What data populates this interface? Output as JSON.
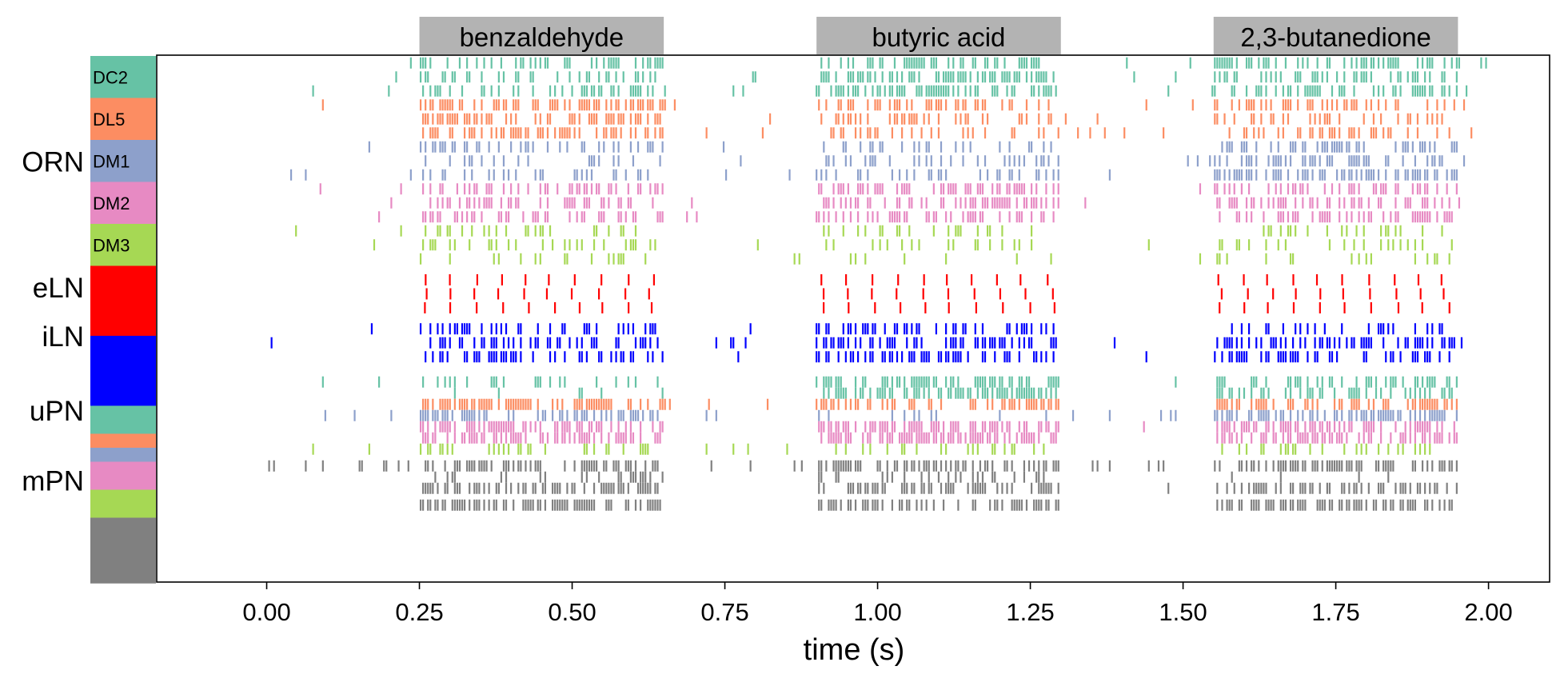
{
  "chart_data": {
    "type": "raster",
    "title": "",
    "xlabel": "time (s)",
    "ylabel": "",
    "xlim": [
      -0.18,
      2.1
    ],
    "x_ticks": [
      0.0,
      0.25,
      0.5,
      0.75,
      1.0,
      1.25,
      1.5,
      1.75,
      2.0
    ],
    "x_tick_labels": [
      "0.00",
      "0.25",
      "0.50",
      "0.75",
      "1.00",
      "1.25",
      "1.50",
      "1.75",
      "2.00"
    ],
    "grid": false,
    "stimuli": [
      {
        "label": "benzaldehyde",
        "start": 0.25,
        "end": 0.65
      },
      {
        "label": "butyric acid",
        "start": 0.9,
        "end": 1.3
      },
      {
        "label": "2,3-butanedione",
        "start": 1.55,
        "end": 1.95
      }
    ],
    "row_groups": [
      {
        "label": "ORN",
        "n_rows": 15
      },
      {
        "label": "eLN",
        "n_rows": 3
      },
      {
        "label": "iLN",
        "n_rows": 3
      },
      {
        "label": "uPN",
        "n_rows": 7
      },
      {
        "label": "mPN",
        "n_rows": 4
      }
    ],
    "color_blocks": [
      {
        "label": "DC2",
        "color": "#66c2a5",
        "rows": 3
      },
      {
        "label": "DL5",
        "color": "#fc8d62",
        "rows": 3
      },
      {
        "label": "DM1",
        "color": "#8da0cb",
        "rows": 3
      },
      {
        "label": "DM2",
        "color": "#e78ac3",
        "rows": 3
      },
      {
        "label": "DM3",
        "color": "#a6d854",
        "rows": 3
      },
      {
        "label": "",
        "color": "#ff0000",
        "rows": 5
      },
      {
        "label": "",
        "color": "#0000ff",
        "rows": 5
      },
      {
        "label": "",
        "color": "#66c2a5",
        "rows": 2
      },
      {
        "label": "",
        "color": "#fc8d62",
        "rows": 1
      },
      {
        "label": "",
        "color": "#8da0cb",
        "rows": 1
      },
      {
        "label": "",
        "color": "#e78ac3",
        "rows": 2
      },
      {
        "label": "",
        "color": "#a6d854",
        "rows": 2
      },
      {
        "label": "",
        "color": "#808080",
        "rows": 4.7
      }
    ],
    "series": [
      {
        "color": "#66c2a5",
        "y": 0,
        "base": 0.55,
        "stim": [
          0.75,
          0.9,
          0.85
        ]
      },
      {
        "color": "#66c2a5",
        "y": 1,
        "base": 0.5,
        "stim": [
          0.7,
          0.95,
          0.85
        ]
      },
      {
        "color": "#66c2a5",
        "y": 2,
        "base": 0.45,
        "stim": [
          0.65,
          0.9,
          0.85
        ]
      },
      {
        "color": "#fc8d62",
        "y": 3,
        "base": 0.45,
        "stim": [
          0.95,
          0.7,
          0.75
        ]
      },
      {
        "color": "#fc8d62",
        "y": 4,
        "base": 0.4,
        "stim": [
          0.95,
          0.65,
          0.7
        ]
      },
      {
        "color": "#fc8d62",
        "y": 5,
        "base": 0.45,
        "stim": [
          0.97,
          0.6,
          0.7
        ]
      },
      {
        "color": "#8da0cb",
        "y": 6,
        "base": 0.45,
        "stim": [
          0.5,
          0.45,
          0.85
        ]
      },
      {
        "color": "#8da0cb",
        "y": 7,
        "base": 0.4,
        "stim": [
          0.45,
          0.45,
          0.9
        ]
      },
      {
        "color": "#8da0cb",
        "y": 8,
        "base": 0.35,
        "stim": [
          0.4,
          0.4,
          0.9
        ]
      },
      {
        "color": "#e78ac3",
        "y": 9,
        "base": 0.35,
        "stim": [
          0.7,
          0.8,
          0.7
        ]
      },
      {
        "color": "#e78ac3",
        "y": 10,
        "base": 0.4,
        "stim": [
          0.7,
          0.85,
          0.7
        ]
      },
      {
        "color": "#e78ac3",
        "y": 11,
        "base": 0.4,
        "stim": [
          0.7,
          0.85,
          0.7
        ]
      },
      {
        "color": "#a6d854",
        "y": 12,
        "base": 0.3,
        "stim": [
          0.4,
          0.3,
          0.45
        ]
      },
      {
        "color": "#a6d854",
        "y": 13,
        "base": 0.3,
        "stim": [
          0.4,
          0.3,
          0.45
        ]
      },
      {
        "color": "#a6d854",
        "y": 14,
        "base": 0.25,
        "stim": [
          0.35,
          0.25,
          0.4
        ]
      },
      {
        "color": "#ff0000",
        "y": 15.5,
        "pattern": "burst"
      },
      {
        "color": "#ff0000",
        "y": 16.5,
        "pattern": "burst"
      },
      {
        "color": "#ff0000",
        "y": 17.5,
        "pattern": "burst"
      },
      {
        "color": "#0000ff",
        "y": 19,
        "base": 0.2,
        "stim": [
          0.6,
          0.6,
          0.6
        ]
      },
      {
        "color": "#0000ff",
        "y": 20,
        "base": 0.35,
        "stim": [
          0.75,
          0.75,
          0.75
        ]
      },
      {
        "color": "#0000ff",
        "y": 21,
        "base": 0.3,
        "stim": [
          0.75,
          0.8,
          0.8
        ]
      },
      {
        "color": "#66c2a5",
        "y": 22.8,
        "base": 0.1,
        "stim": [
          0.3,
          1.0,
          0.7
        ]
      },
      {
        "color": "#66c2a5",
        "y": 23.6,
        "base": 0.1,
        "stim": [
          0.2,
          1.0,
          0.6
        ]
      },
      {
        "color": "#fc8d62",
        "y": 24.4,
        "base": 0.55,
        "stim": [
          1.0,
          0.8,
          1.0
        ]
      },
      {
        "color": "#8da0cb",
        "y": 25.2,
        "base": 0.9,
        "stim": [
          0.8,
          0.2,
          1.0
        ]
      },
      {
        "color": "#e78ac3",
        "y": 26.0,
        "base": 0.05,
        "stim": [
          1.0,
          1.0,
          1.0
        ]
      },
      {
        "color": "#e78ac3",
        "y": 26.8,
        "base": 0.05,
        "stim": [
          1.0,
          1.0,
          1.0
        ]
      },
      {
        "color": "#a6d854",
        "y": 27.6,
        "base": 0.45,
        "stim": [
          0.45,
          0.45,
          0.45
        ]
      },
      {
        "color": "#808080",
        "y": 28.8,
        "base": 0.7,
        "stim": [
          1.0,
          1.0,
          1.0
        ]
      },
      {
        "color": "#808080",
        "y": 29.6,
        "base": 0.0,
        "stim": [
          0.4,
          0.4,
          0.05
        ]
      },
      {
        "color": "#808080",
        "y": 30.4,
        "base": 0.1,
        "stim": [
          0.9,
          0.9,
          0.9
        ]
      },
      {
        "color": "#808080",
        "y": 31.6,
        "base": 0.0,
        "stim": [
          0.95,
          0.95,
          0.95
        ]
      }
    ]
  }
}
